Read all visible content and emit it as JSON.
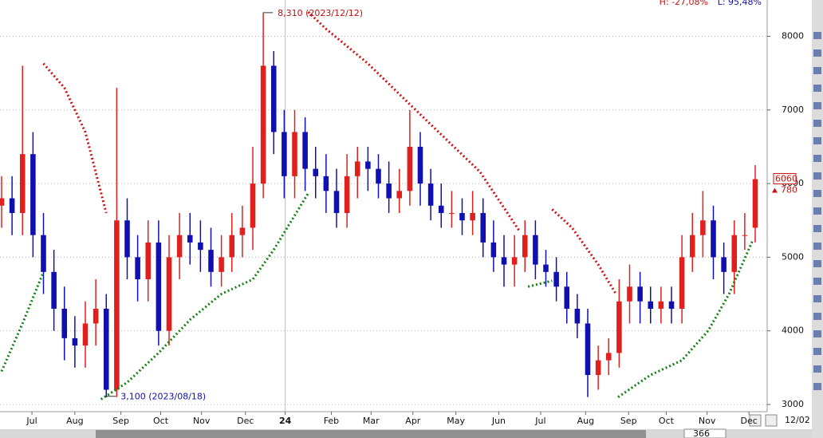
{
  "chart_data": {
    "type": "candlestick",
    "header": {
      "high": "H: -27,08%",
      "low": "L: 95,48%"
    },
    "xlim": [
      0,
      72
    ],
    "xticks": [
      {
        "value": 2.9,
        "label": "Jul"
      },
      {
        "value": 7.0,
        "label": "Aug"
      },
      {
        "value": 11.4,
        "label": "Sep"
      },
      {
        "value": 15.2,
        "label": "Oct"
      },
      {
        "value": 19.1,
        "label": "Nov"
      },
      {
        "value": 23.3,
        "label": "Dec"
      },
      {
        "value": 27.1,
        "label": "24"
      },
      {
        "value": 31.5,
        "label": "Feb"
      },
      {
        "value": 35.3,
        "label": "Mar"
      },
      {
        "value": 39.3,
        "label": "Apr"
      },
      {
        "value": 43.4,
        "label": "May"
      },
      {
        "value": 47.5,
        "label": "Jun"
      },
      {
        "value": 51.5,
        "label": "Jul"
      },
      {
        "value": 55.8,
        "label": "Aug"
      },
      {
        "value": 59.9,
        "label": "Sep"
      },
      {
        "value": 63.5,
        "label": "Oct"
      },
      {
        "value": 67.4,
        "label": "Nov"
      },
      {
        "value": 71.4,
        "label": "Dec"
      }
    ],
    "year_tick": 27.1,
    "ylim": [
      2913,
      8493
    ],
    "yticks": [
      3000,
      4000,
      5000,
      6000,
      7000,
      8000
    ],
    "grid": true,
    "up_color": "#e0201c",
    "down_color": "#1010b0",
    "open": [
      5700,
      5800,
      5600,
      6400,
      5300,
      4800,
      4300,
      3900,
      3800,
      4100,
      4300,
      3200,
      5500,
      5000,
      4700,
      5200,
      4000,
      5000,
      5300,
      5200,
      5100,
      4800,
      5000,
      5300,
      5400,
      6000,
      7600,
      6700,
      6100,
      6700,
      6200,
      6100,
      5900,
      5600,
      6100,
      6300,
      6200,
      6000,
      5800,
      5900,
      6500,
      6000,
      5700,
      5600,
      5600,
      5500,
      5600,
      5200,
      5000,
      4900,
      5000,
      5300,
      4900,
      4800,
      4600,
      4300,
      4100,
      3400,
      3600,
      3700,
      4400,
      4600,
      4400,
      4300,
      4400,
      4300,
      5000,
      5300,
      5500,
      5000,
      4800,
      5300,
      5400
    ],
    "high": [
      6100,
      6100,
      7600,
      6700,
      5600,
      5100,
      4600,
      4200,
      4400,
      4700,
      4500,
      7300,
      5800,
      5300,
      5500,
      5500,
      5300,
      5600,
      5600,
      5500,
      5400,
      5300,
      5600,
      5700,
      6500,
      8310,
      7800,
      7000,
      7000,
      6900,
      6500,
      6400,
      6200,
      6400,
      6500,
      6500,
      6400,
      6300,
      6200,
      7000,
      6700,
      6200,
      6000,
      5900,
      5800,
      5900,
      5800,
      5500,
      5300,
      5300,
      5500,
      5500,
      5100,
      5000,
      4800,
      4500,
      4300,
      3800,
      3900,
      4700,
      4900,
      4800,
      4600,
      4600,
      4600,
      5300,
      5600,
      5900,
      5700,
      5200,
      5500,
      5600,
      6250
    ],
    "low": [
      5400,
      5300,
      5300,
      5000,
      4500,
      4000,
      3600,
      3500,
      3500,
      3800,
      3100,
      3100,
      4700,
      4400,
      4400,
      3800,
      3800,
      4700,
      4900,
      4800,
      4600,
      4600,
      4800,
      5000,
      5100,
      5800,
      6400,
      5800,
      5800,
      5900,
      5800,
      5600,
      5400,
      5400,
      5800,
      5900,
      5800,
      5600,
      5600,
      5700,
      5700,
      5500,
      5400,
      5400,
      5300,
      5300,
      5000,
      4800,
      4600,
      4600,
      4800,
      4700,
      4600,
      4400,
      4100,
      3900,
      3100,
      3200,
      3400,
      3500,
      4100,
      4100,
      4100,
      4100,
      4100,
      4100,
      4800,
      5000,
      4700,
      4500,
      4500,
      5100,
      5200
    ],
    "close": [
      5800,
      5600,
      6400,
      5300,
      4800,
      4300,
      3900,
      3800,
      4100,
      4300,
      3200,
      5500,
      5000,
      4700,
      5200,
      4000,
      5000,
      5300,
      5200,
      5100,
      4800,
      5000,
      5300,
      5400,
      6000,
      7600,
      6700,
      6100,
      6700,
      6200,
      6100,
      5900,
      5600,
      6100,
      6300,
      6200,
      6000,
      5800,
      5900,
      6500,
      6000,
      5700,
      5600,
      5600,
      5500,
      5600,
      5200,
      5000,
      4900,
      5000,
      5300,
      4900,
      4800,
      4600,
      4300,
      4100,
      3400,
      3600,
      3700,
      4400,
      4600,
      4400,
      4300,
      4400,
      4300,
      5000,
      5300,
      5500,
      5000,
      4800,
      5300,
      5300,
      6060
    ],
    "sar": [
      {
        "color": "#108010",
        "x": [
          0,
          2,
          4
        ],
        "values": [
          3450,
          4100,
          4800
        ]
      },
      {
        "color": "#d01010",
        "x": [
          4,
          6,
          8,
          10
        ],
        "values": [
          7630,
          7300,
          6700,
          5600
        ]
      },
      {
        "color": "#108010",
        "x": [
          9.5,
          12,
          15,
          18,
          21,
          24,
          26,
          29.3
        ],
        "values": [
          3070,
          3300,
          3700,
          4150,
          4500,
          4700,
          5100,
          5870
        ]
      },
      {
        "color": "#d01010",
        "x": [
          29.3,
          31,
          35,
          38.9,
          45.7,
          49.5
        ],
        "values": [
          8330,
          8100,
          7630,
          7090,
          6160,
          5350
        ]
      },
      {
        "color": "#108010",
        "x": [
          50.3,
          52.6
        ],
        "values": [
          4600,
          4680
        ]
      },
      {
        "color": "#d01010",
        "x": [
          52.6,
          54.5,
          57,
          58.7
        ],
        "values": [
          5650,
          5400,
          4900,
          4500
        ]
      },
      {
        "color": "#108010",
        "x": [
          58.9,
          62,
          65,
          67.5,
          69.5,
          71.8
        ],
        "values": [
          3100,
          3400,
          3600,
          4000,
          4500,
          5240
        ]
      }
    ],
    "annotations": [
      {
        "text": "8,310 (2023/12/12)",
        "x": 25,
        "value": 8310
      },
      {
        "text": "3,100 (2023/08/18)",
        "x": 10,
        "value": 3100
      }
    ],
    "last_price": 6060,
    "last_price_label": "6060",
    "change_label": "780",
    "toolbar": {
      "zoom": "366",
      "date": "12/02"
    }
  }
}
